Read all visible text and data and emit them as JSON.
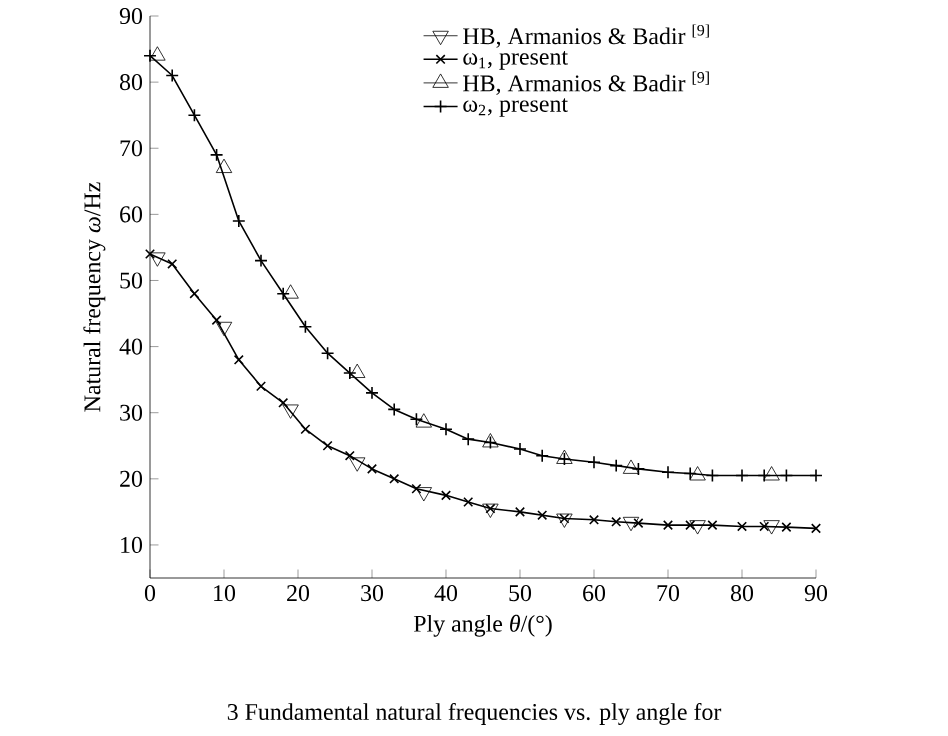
{
  "chart_data": {
    "type": "line",
    "xlabel": "Ply angle *θ*/(°)",
    "ylabel": "Natural frequency *ω*/Hz",
    "xlim": [
      0,
      90
    ],
    "ylim": [
      5,
      90
    ],
    "xticks": [
      0,
      10,
      20,
      30,
      40,
      50,
      60,
      70,
      80,
      90
    ],
    "yticks": [
      10,
      20,
      30,
      40,
      50,
      60,
      70,
      80,
      90
    ],
    "grid": false,
    "legend": "top right",
    "line_style": "solid",
    "annotations": [
      "3    Fundamental natural frequencies vs. ply angle for"
    ],
    "series": [
      {
        "name": "HB, Armanios & Badir $^{[9]}$",
        "color": "#000000",
        "type": "scatter",
        "marker": "triangle_down",
        "x": [
          1,
          10,
          19,
          28,
          37,
          46,
          56,
          65,
          74,
          84
        ],
        "values": [
          53.5,
          43,
          30.5,
          22.5,
          18,
          15.5,
          14,
          13.5,
          13,
          13
        ]
      },
      {
        "name": "ω$_{1}$, present",
        "color": "#000000",
        "marker": "cross",
        "x": [
          0,
          3,
          6,
          9,
          12,
          15,
          18,
          21,
          24,
          27,
          30,
          33,
          36,
          40,
          43,
          46,
          50,
          53,
          56,
          60,
          63,
          66,
          70,
          73,
          76,
          80,
          83,
          86,
          90
        ],
        "values": [
          54,
          52.5,
          48,
          44,
          38,
          34,
          31.5,
          27.5,
          25,
          23.5,
          21.5,
          20,
          18.5,
          17.5,
          16.5,
          15.5,
          15,
          14.5,
          14,
          13.8,
          13.5,
          13.3,
          13,
          13,
          13,
          12.8,
          12.8,
          12.7,
          12.5
        ]
      },
      {
        "name": "HB, Armanios & Badir $^{[9]}$",
        "color": "#000000",
        "type": "scatter",
        "marker": "triangle",
        "x": [
          1,
          10,
          19,
          28,
          37,
          46,
          56,
          65,
          74,
          84
        ],
        "values": [
          84,
          67,
          48,
          36,
          28.5,
          25.5,
          23,
          21.5,
          20.5,
          20.5
        ]
      },
      {
        "name": "ω$_{2}$, present",
        "color": "#000000",
        "marker": "plus",
        "x": [
          0,
          3,
          6,
          9,
          12,
          15,
          18,
          21,
          24,
          27,
          30,
          33,
          36,
          40,
          43,
          46,
          50,
          53,
          56,
          60,
          63,
          66,
          70,
          73,
          76,
          80,
          83,
          86,
          90
        ],
        "values": [
          84,
          81,
          75,
          69,
          59,
          53,
          48,
          43,
          39,
          36,
          33,
          30.5,
          29,
          27.5,
          26,
          25.5,
          24.5,
          23.5,
          23,
          22.5,
          22,
          21.5,
          21,
          20.8,
          20.5,
          20.5,
          20.5,
          20.5,
          20.5
        ]
      }
    ]
  }
}
